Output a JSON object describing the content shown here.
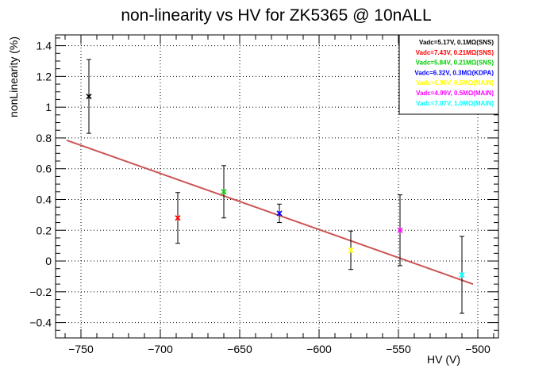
{
  "chart_data": {
    "type": "scatter",
    "title": "non-linearity vs HV for ZK5365 @ 10nALL",
    "xlabel": "HV (V)",
    "ylabel": "nonLinearity (%)",
    "xlim": [
      -766,
      -487
    ],
    "ylim": [
      -0.5,
      1.47
    ],
    "grid": true,
    "legend_position": "top-right",
    "x_ticks": [
      -750,
      -700,
      -650,
      -600,
      -550,
      -500
    ],
    "x_tick_labels": [
      "−750",
      "−700",
      "−650",
      "−600",
      "−550",
      "−500"
    ],
    "y_ticks": [
      -0.4,
      -0.2,
      0,
      0.2,
      0.4,
      0.6,
      0.8,
      1,
      1.2,
      1.4
    ],
    "y_tick_labels": [
      "−0.4",
      "−0.2",
      "0",
      "0.2",
      "0.4",
      "0.6",
      "0.8",
      "1",
      "1.2",
      "1.4"
    ],
    "series": [
      {
        "name": "Vadc=5.17V, 0.1MΩ(SNS)",
        "color": "#000000",
        "points": [
          {
            "x": -745,
            "y": 1.07,
            "err": 0.24
          }
        ]
      },
      {
        "name": "Vadc=7.43V, 0.21MΩ(SNS)",
        "color": "#ff0000",
        "points": [
          {
            "x": -689,
            "y": 0.28,
            "err": 0.165
          }
        ]
      },
      {
        "name": "Vadc=5.84V, 0.21MΩ(SNS)",
        "color": "#00cc00",
        "points": [
          {
            "x": -660,
            "y": 0.45,
            "err": 0.17
          }
        ]
      },
      {
        "name": "Vadc=6.32V, 0.3MΩ(KDPA)",
        "color": "#0000ff",
        "points": [
          {
            "x": -625,
            "y": 0.31,
            "err": 0.06
          }
        ]
      },
      {
        "name": "Vadc=6.96V, 0.5MΩ(MAIN)",
        "color": "#ffff00",
        "points": [
          {
            "x": -580,
            "y": 0.07,
            "err": 0.125
          }
        ]
      },
      {
        "name": "Vadc=4.99V, 0.5MΩ(MAIN)",
        "color": "#ff00ff",
        "points": [
          {
            "x": -549,
            "y": 0.2,
            "err": 0.23
          }
        ]
      },
      {
        "name": "Vadc=7.07V, 1.0MΩ(MAIN)",
        "color": "#00ffff",
        "points": [
          {
            "x": -510,
            "y": -0.09,
            "err": 0.25
          }
        ]
      }
    ],
    "fit": {
      "color": "#cc5555",
      "x": [
        -759,
        -503
      ],
      "y": [
        0.785,
        -0.15
      ]
    }
  }
}
